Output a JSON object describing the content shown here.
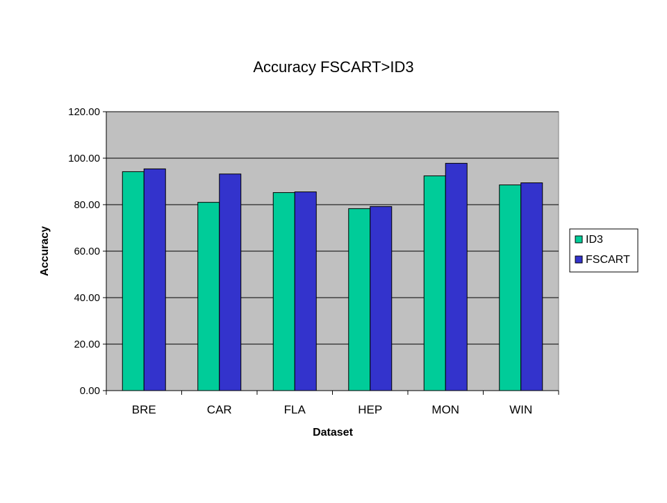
{
  "chart_data": {
    "type": "bar",
    "title": "Accuracy FSCART>ID3",
    "xlabel": "Dataset",
    "ylabel": "Accuracy",
    "categories": [
      "BRE",
      "CAR",
      "FLA",
      "HEP",
      "MON",
      "WIN"
    ],
    "series": [
      {
        "name": "ID3",
        "color": "#00CC99",
        "values": [
          94.2,
          81.0,
          85.2,
          78.3,
          92.4,
          88.5
        ]
      },
      {
        "name": "FSCART",
        "color": "#3333CC",
        "values": [
          95.4,
          93.2,
          85.5,
          79.2,
          97.8,
          89.4
        ]
      }
    ],
    "ylim": [
      0,
      120
    ],
    "yticks": [
      "0.00",
      "20.00",
      "40.00",
      "60.00",
      "80.00",
      "100.00",
      "120.00"
    ],
    "grid": true,
    "plot_background": "#C0C0C0",
    "legend_position": "right"
  }
}
